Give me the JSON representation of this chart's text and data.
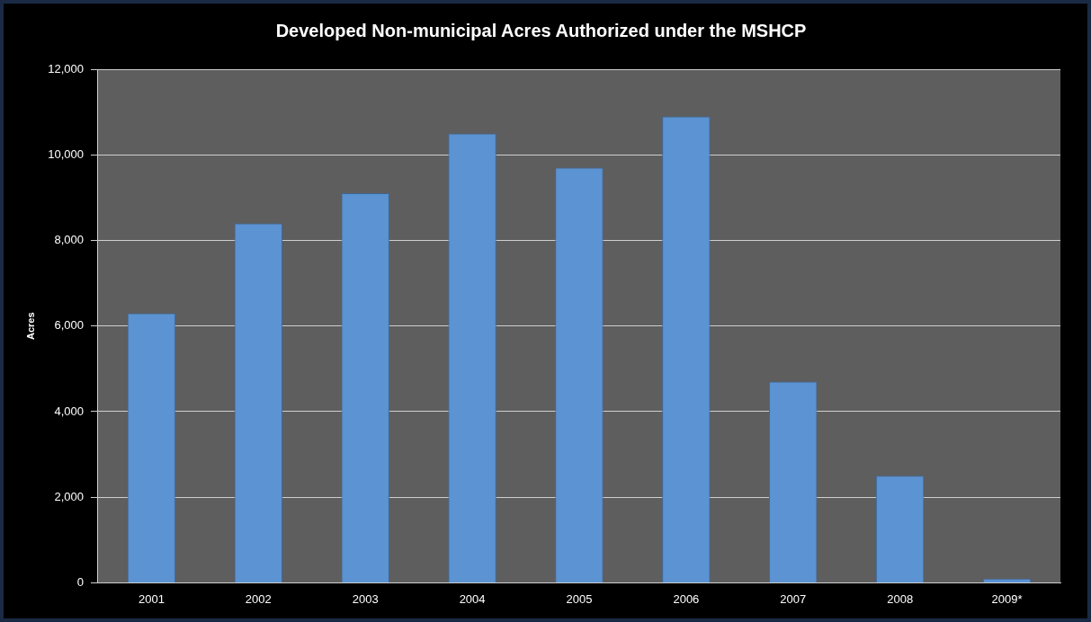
{
  "chart_data": {
    "type": "bar",
    "title": "Developed Non-municipal Acres Authorized under the MSHCP",
    "ylabel": "Acres",
    "categories": [
      "2001",
      "2002",
      "2003",
      "2004",
      "2005",
      "2006",
      "2007",
      "2008",
      "2009*"
    ],
    "values": [
      6300,
      8400,
      9100,
      10500,
      9700,
      10900,
      4700,
      2500,
      100
    ],
    "color": "#5b93d3",
    "ylim": [
      0,
      12000
    ],
    "yticks": [
      0,
      {
        "value": 2000,
        "label": "2,000"
      },
      {
        "value": 4000,
        "label": "4,000"
      },
      {
        "value": 6000,
        "label": "6,000"
      },
      {
        "value": 8000,
        "label": "8,000"
      },
      {
        "value": 10000,
        "label": "10,000"
      },
      {
        "value": 12000,
        "label": "12,000"
      }
    ],
    "grid": "y",
    "legend": false
  }
}
